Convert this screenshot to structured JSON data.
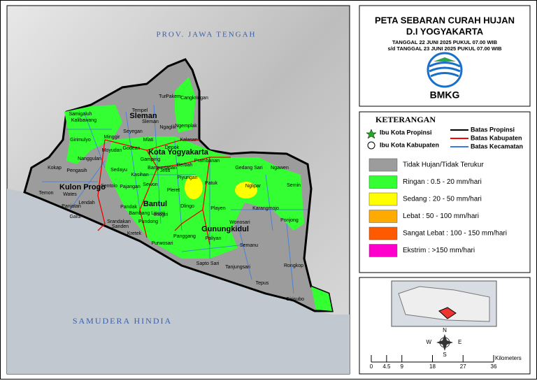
{
  "map": {
    "title_labels": {
      "province_north": "PROV. JAWA TENGAH",
      "ocean": "SAMUDERA HINDIA"
    },
    "regency_labels": [
      "Sleman",
      "Kota Yogyakarta",
      "Kulon Progo",
      "Bantul",
      "Gunungkidul"
    ],
    "district_labels": [
      "Turi",
      "Pakem",
      "Cangkringan",
      "Tempel",
      "Sleman",
      "Ngaglik",
      "Ngemplak",
      "Kalasan",
      "Samigaluh",
      "Kalibawang",
      "Girimulyo",
      "Minggir",
      "Seyegan",
      "Godean",
      "Moyudan",
      "Mlati",
      "Depok",
      "Gamping",
      "Nanggulan",
      "Sedayu",
      "Kasihan",
      "Pengasih",
      "Kokap",
      "Temon",
      "Wates",
      "Panjatan",
      "Galur",
      "Lendah",
      "Sentolo",
      "Pajangan",
      "Sewon",
      "Pleret",
      "Piyungan",
      "Berbah",
      "Prambanan",
      "Banguntapan",
      "Jetis",
      "Imogiri",
      "Pandak",
      "Bambang Lipuro",
      "Srandakan",
      "Sanden",
      "Kretek",
      "Pundong",
      "Dlingo",
      "Patuk",
      "Playen",
      "Gedang Sari",
      "Ngawen",
      "Semin",
      "Nglipar",
      "Karangmojo",
      "Ponjong",
      "Wonosari",
      "Paliyan",
      "Panggang",
      "Purwosari",
      "Sapto Sari",
      "Tanjungsari",
      "Semanu",
      "Rongkop",
      "Tepus",
      "Girisubo"
    ]
  },
  "header": {
    "title_1": "PETA SEBARAN CURAH HUJAN",
    "title_2": "D.I YOGYAKARTA",
    "period_1": "TANGGAL 22 JUNI 2025 PUKUL 07.00 WIB",
    "period_2": "s/d TANGGAL 23 JUNI 2025 PUKUL 07.00 WIB",
    "logo_text": "BMKG"
  },
  "legend": {
    "title": "KETERANGAN",
    "symbols": [
      "Ibu Kota Propinsi",
      "Ibu Kota Kabupaten"
    ],
    "lines": [
      {
        "label": "Batas Propinsi",
        "color": "#000000"
      },
      {
        "label": "Batas Kabupaten",
        "color": "#ff0000"
      },
      {
        "label": "Batas Kecamatan",
        "color": "#3a7be0"
      }
    ],
    "classes": [
      {
        "label": "Tidak Hujan/Tidak Terukur",
        "color": "#9c9c9c"
      },
      {
        "label": "Ringan : 0.5 - 20 mm/hari",
        "color": "#33ff33"
      },
      {
        "label": "Sedang : 20 - 50 mm/hari",
        "color": "#ffff00"
      },
      {
        "label": "Lebat    : 50 - 100 mm/hari",
        "color": "#ffaa00"
      },
      {
        "label": "Sangat Lebat : 100 - 150 mm/hari",
        "color": "#ff5a00"
      },
      {
        "label": "Ekstrim : >150 mm/hari",
        "color": "#ff00cc"
      }
    ]
  },
  "compass": {
    "n": "N",
    "s": "S",
    "e": "E",
    "w": "W"
  },
  "scale": {
    "ticks": [
      0,
      4.5,
      9,
      18,
      27,
      36
    ],
    "unit": "Kilometers"
  }
}
